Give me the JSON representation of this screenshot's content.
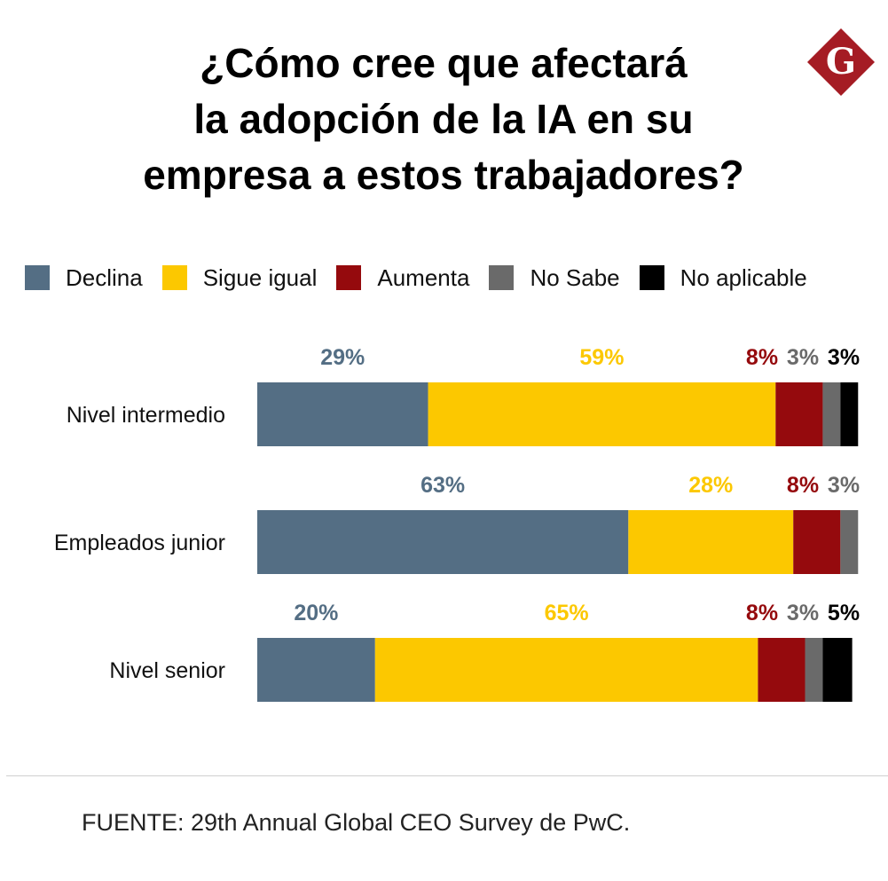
{
  "title_lines": [
    "¿Cómo cree que afectará",
    "la adopción de la IA en su",
    "empresa a estos trabajadores?"
  ],
  "logo": {
    "letter": "G",
    "color": "#a51c24"
  },
  "legend": [
    {
      "label": "Declina",
      "color": "#546e84"
    },
    {
      "label": "Sigue igual",
      "color": "#fcc800"
    },
    {
      "label": "Aumenta",
      "color": "#950a0d"
    },
    {
      "label": "No Sabe",
      "color": "#6a6a6a"
    },
    {
      "label": "No aplicable",
      "color": "#000000"
    }
  ],
  "chart_data": {
    "type": "bar",
    "orientation": "horizontal",
    "stacked": true,
    "title": "¿Cómo cree que afectará la adopción de la IA en su empresa a estos trabajadores?",
    "categories": [
      "Nivel intermedio",
      "Empleados junior",
      "Nivel senior"
    ],
    "series": [
      {
        "name": "Declina",
        "color": "#546e84",
        "values": [
          29,
          63,
          20
        ]
      },
      {
        "name": "Sigue igual",
        "color": "#fcc800",
        "values": [
          59,
          28,
          65
        ]
      },
      {
        "name": "Aumenta",
        "color": "#950a0d",
        "values": [
          8,
          8,
          8
        ]
      },
      {
        "name": "No Sabe",
        "color": "#6a6a6a",
        "values": [
          3,
          3,
          3
        ]
      },
      {
        "name": "No aplicable",
        "color": "#000000",
        "values": [
          3,
          0,
          5
        ]
      }
    ],
    "value_suffix": "%",
    "xlim": [
      0,
      100
    ],
    "legend_position": "top",
    "grid": false
  },
  "source": "FUENTE: 29th Annual Global CEO Survey de PwC."
}
